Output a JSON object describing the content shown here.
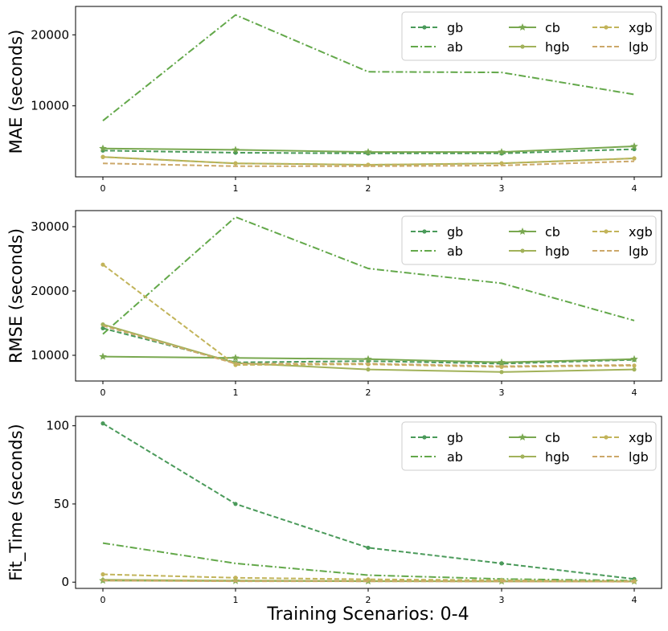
{
  "figure": {
    "xlabel": "Training Scenarios: 0-4"
  },
  "colors": {
    "gb": "#4a9a5a",
    "ab": "#63a84a",
    "cb": "#79a850",
    "hgb": "#a2b25a",
    "xgb": "#c2b45a",
    "lgb": "#cca86a"
  },
  "chart_data": [
    {
      "type": "line",
      "ylabel": "MAE (seconds)",
      "x": [
        0,
        1,
        2,
        3,
        4
      ],
      "xticks": [
        "0",
        "1",
        "2",
        "3",
        "4"
      ],
      "yticks": [
        10000,
        20000
      ],
      "ytick_labels": [
        "10000",
        "20000"
      ],
      "ylim": [
        0,
        24000
      ],
      "legend_loc": "top-right",
      "series": [
        {
          "name": "gb",
          "style": "dashed",
          "marker": "dot",
          "values": [
            3700,
            3400,
            3300,
            3300,
            3900
          ]
        },
        {
          "name": "ab",
          "style": "dashdot",
          "marker": "none",
          "values": [
            7900,
            22800,
            14800,
            14700,
            11600
          ]
        },
        {
          "name": "cb",
          "style": "solid",
          "marker": "star",
          "values": [
            4000,
            3800,
            3500,
            3500,
            4300
          ]
        },
        {
          "name": "hgb",
          "style": "solid",
          "marker": "dot",
          "values": [
            2800,
            1900,
            1700,
            1900,
            2600
          ]
        },
        {
          "name": "xgb",
          "style": "dashed",
          "marker": "dot",
          "values": [
            2800,
            1900,
            1700,
            1900,
            2600
          ]
        },
        {
          "name": "lgb",
          "style": "dashed",
          "marker": "none",
          "values": [
            1900,
            1500,
            1500,
            1600,
            2200
          ]
        }
      ]
    },
    {
      "type": "line",
      "ylabel": "RMSE (seconds)",
      "x": [
        0,
        1,
        2,
        3,
        4
      ],
      "xticks": [
        "0",
        "1",
        "2",
        "3",
        "4"
      ],
      "yticks": [
        10000,
        20000,
        30000
      ],
      "ytick_labels": [
        "10000",
        "20000",
        "30000"
      ],
      "ylim": [
        6000,
        32500
      ],
      "legend_loc": "top-right",
      "series": [
        {
          "name": "gb",
          "style": "dashed",
          "marker": "dot",
          "values": [
            14200,
            8900,
            9100,
            8700,
            9300
          ]
        },
        {
          "name": "ab",
          "style": "dashdot",
          "marker": "none",
          "values": [
            13300,
            31500,
            23500,
            21200,
            15400
          ]
        },
        {
          "name": "cb",
          "style": "solid",
          "marker": "star",
          "values": [
            9800,
            9600,
            9400,
            8900,
            9400
          ]
        },
        {
          "name": "hgb",
          "style": "solid",
          "marker": "dot",
          "values": [
            14800,
            8800,
            7800,
            7400,
            7800
          ]
        },
        {
          "name": "xgb",
          "style": "dashed",
          "marker": "dot",
          "values": [
            24100,
            8500,
            8600,
            8200,
            8400
          ]
        },
        {
          "name": "lgb",
          "style": "dashed",
          "marker": "none",
          "values": [
            14600,
            8700,
            8700,
            8300,
            8500
          ]
        }
      ]
    },
    {
      "type": "line",
      "ylabel": "Fit_Time (seconds)",
      "x": [
        0,
        1,
        2,
        3,
        4
      ],
      "xticks": [
        "0",
        "1",
        "2",
        "3",
        "4"
      ],
      "yticks": [
        0,
        50,
        100
      ],
      "ytick_labels": [
        "0",
        "50",
        "100"
      ],
      "ylim": [
        -4,
        106
      ],
      "legend_loc": "top-right",
      "series": [
        {
          "name": "gb",
          "style": "dashed",
          "marker": "dot",
          "values": [
            101.5,
            50,
            22,
            12,
            2
          ]
        },
        {
          "name": "ab",
          "style": "dashdot",
          "marker": "none",
          "values": [
            25,
            12,
            4.5,
            2,
            1
          ]
        },
        {
          "name": "cb",
          "style": "solid",
          "marker": "star",
          "values": [
            1,
            0.8,
            0.6,
            0.5,
            0.5
          ]
        },
        {
          "name": "hgb",
          "style": "solid",
          "marker": "dot",
          "values": [
            1.5,
            1,
            0.8,
            0.5,
            0.4
          ]
        },
        {
          "name": "xgb",
          "style": "dashed",
          "marker": "dot",
          "values": [
            5,
            2.8,
            1.8,
            1.2,
            0.6
          ]
        },
        {
          "name": "lgb",
          "style": "dashed",
          "marker": "none",
          "values": [
            1,
            0.6,
            0.5,
            0.4,
            0.3
          ]
        }
      ]
    }
  ]
}
